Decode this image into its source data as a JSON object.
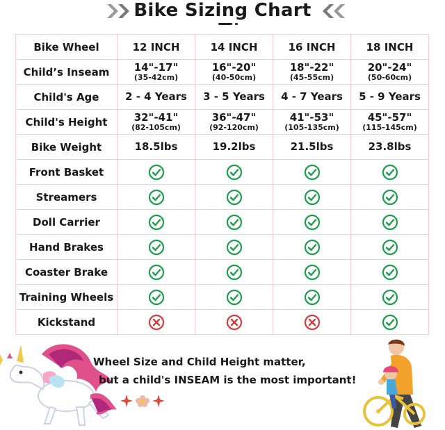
{
  "title": "Bike Sizing Chart",
  "columns": [
    "Bike Wheel",
    "12 INCH",
    "14 INCH",
    "16 INCH",
    "18 INCH"
  ],
  "rows": [
    {
      "label": "Child’s Inseam",
      "values": [
        {
          "main": "14\"-17\"",
          "sub": "(35-42cm)"
        },
        {
          "main": "16\"-20\"",
          "sub": "(40-50cm)"
        },
        {
          "main": "18\"-22\"",
          "sub": "(45-55cm)"
        },
        {
          "main": "20\"-24\"",
          "sub": "(50-60cm)"
        }
      ]
    },
    {
      "label": "Child's Age",
      "values": [
        {
          "main": "2 - 4 Years"
        },
        {
          "main": "3 - 5 Years"
        },
        {
          "main": "4 - 7 Years"
        },
        {
          "main": "5 - 9 Years"
        }
      ]
    },
    {
      "label": "Child's Height",
      "values": [
        {
          "main": "32\"-41\"",
          "sub": "(82-105cm)"
        },
        {
          "main": "36\"-47\"",
          "sub": "(92-120cm)"
        },
        {
          "main": "41\"-53\"",
          "sub": "(105-135cm)"
        },
        {
          "main": "45\"-57\"",
          "sub": "(115-145cm)"
        }
      ]
    },
    {
      "label": "Bike Weight",
      "values": [
        {
          "main": "18.5lbs"
        },
        {
          "main": "19.2lbs"
        },
        {
          "main": "21.5lbs"
        },
        {
          "main": "23.8lbs"
        }
      ]
    },
    {
      "label": "Front Basket",
      "icons": [
        "check",
        "check",
        "check",
        "check"
      ]
    },
    {
      "label": "Streamers",
      "icons": [
        "check",
        "check",
        "check",
        "check"
      ]
    },
    {
      "label": "Doll Carrier",
      "icons": [
        "check",
        "check",
        "check",
        "check"
      ]
    },
    {
      "label": "Hand Brakes",
      "icons": [
        "check",
        "check",
        "check",
        "check"
      ]
    },
    {
      "label": "Coaster Brake",
      "icons": [
        "check",
        "check",
        "check",
        "check"
      ]
    },
    {
      "label": "Training Wheels",
      "icons": [
        "check",
        "check",
        "check",
        "check"
      ]
    },
    {
      "label": "Kickstand",
      "icons": [
        "cross",
        "cross",
        "cross",
        "check"
      ]
    }
  ],
  "footer": {
    "line1": "Wheel Size and Child Height matter,",
    "line2": "but a child's INSEAM is the most important!"
  },
  "colors": {
    "check": "#1e9e4a",
    "cross": "#d63a3a",
    "border": "#efd0d0",
    "chevron": "#9a9a9a"
  },
  "icons": {
    "header_left": "double-chevron-right-icon",
    "header_right": "double-chevron-left-icon",
    "yes": "check-circle-icon",
    "no": "cross-circle-icon"
  }
}
